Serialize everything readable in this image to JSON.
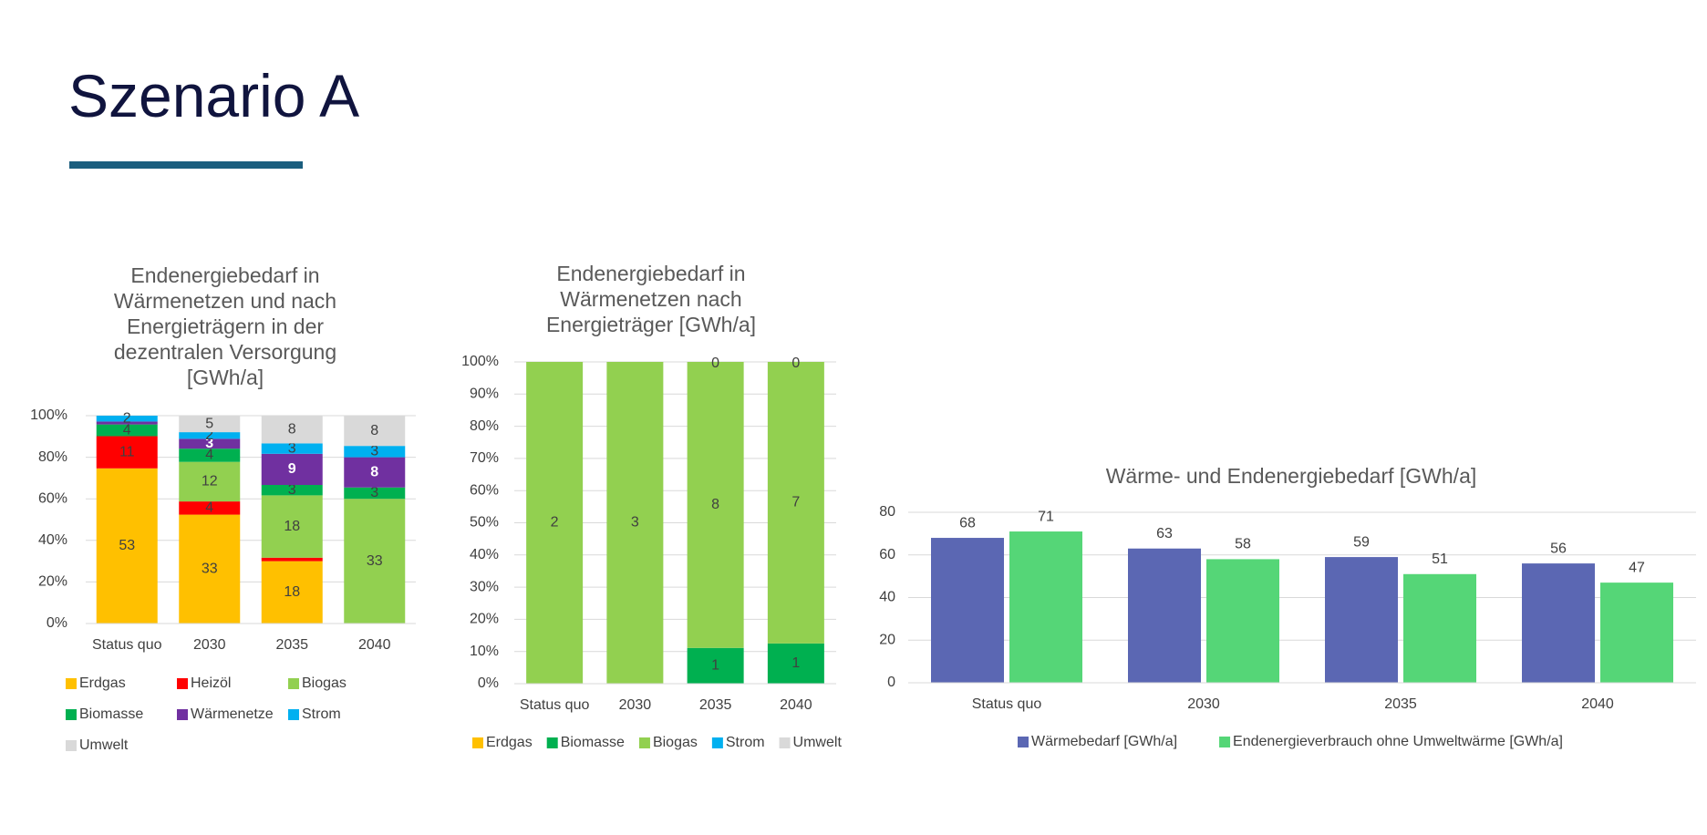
{
  "title": "Szenario A",
  "chart_data": [
    {
      "type": "stacked_bar_100",
      "title": [
        "Endenergiebedarf in",
        "Wärmenetzen und nach",
        "Energieträgern in der",
        "dezentralen Versorgung",
        "[GWh/a]"
      ],
      "categories": [
        "Status quo",
        "2030",
        "2035",
        "2040"
      ],
      "ylim": [
        0,
        100
      ],
      "yticks": [
        {
          "value": 0,
          "label": "0%"
        },
        {
          "value": 20,
          "label": "20%"
        },
        {
          "value": 40,
          "label": "40%"
        },
        {
          "value": 60,
          "label": "60%"
        },
        {
          "value": 80,
          "label": "80%"
        },
        {
          "value": 100,
          "label": "100%"
        }
      ],
      "series": [
        {
          "name": "Erdgas",
          "color": "#ffc000",
          "values": [
            53,
            33,
            18,
            null
          ]
        },
        {
          "name": "Heizöl",
          "color": "#ff0000",
          "values": [
            11,
            4,
            1,
            null
          ]
        },
        {
          "name": "Biogas",
          "color": "#92d050",
          "values": [
            null,
            12,
            18,
            33
          ]
        },
        {
          "name": "Biomasse",
          "color": "#00b050",
          "values": [
            4,
            4,
            3,
            3
          ]
        },
        {
          "name": "Wärmenetze",
          "color": "#7030a0",
          "label_color": "#ffffff",
          "values": [
            1,
            3,
            9,
            8
          ]
        },
        {
          "name": "Strom",
          "color": "#00b0f0",
          "values": [
            2,
            2,
            3,
            3
          ]
        },
        {
          "name": "Umwelt",
          "color": "#d9d9d9",
          "values": [
            null,
            5,
            8,
            8
          ]
        }
      ]
    },
    {
      "type": "stacked_bar_100",
      "title": [
        "Endenergiebedarf in",
        "Wärmenetzen nach",
        "Energieträger [GWh/a]"
      ],
      "categories": [
        "Status quo",
        "2030",
        "2035",
        "2040"
      ],
      "ylim": [
        0,
        100
      ],
      "yticks": [
        {
          "value": 0,
          "label": "0%"
        },
        {
          "value": 10,
          "label": "10%"
        },
        {
          "value": 20,
          "label": "20%"
        },
        {
          "value": 30,
          "label": "30%"
        },
        {
          "value": 40,
          "label": "40%"
        },
        {
          "value": 50,
          "label": "50%"
        },
        {
          "value": 60,
          "label": "60%"
        },
        {
          "value": 70,
          "label": "70%"
        },
        {
          "value": 80,
          "label": "80%"
        },
        {
          "value": 90,
          "label": "90%"
        },
        {
          "value": 100,
          "label": "100%"
        }
      ],
      "series": [
        {
          "name": "Erdgas",
          "color": "#ffc000",
          "values": [
            null,
            null,
            null,
            null
          ]
        },
        {
          "name": "Biomasse",
          "color": "#00b050",
          "values": [
            0,
            0,
            1,
            1
          ]
        },
        {
          "name": "Biogas",
          "color": "#92d050",
          "values": [
            2,
            3,
            8,
            7
          ]
        },
        {
          "name": "Strom",
          "color": "#00b0f0",
          "values": [
            null,
            null,
            0,
            0
          ]
        },
        {
          "name": "Umwelt",
          "color": "#d9d9d9",
          "values": [
            null,
            null,
            null,
            null
          ]
        }
      ]
    },
    {
      "type": "bar",
      "title": [
        "Wärme- und Endenergiebedarf [GWh/a]"
      ],
      "categories": [
        "Status quo",
        "2030",
        "2035",
        "2040"
      ],
      "ylim": [
        0,
        80
      ],
      "yticks": [
        0,
        20,
        40,
        60,
        80
      ],
      "series": [
        {
          "name": "Wärmebedarf [GWh/a]",
          "color": "#5b67b3",
          "values": [
            68,
            63,
            59,
            56
          ]
        },
        {
          "name": "Endenergieverbrauch ohne Umweltwärme [GWh/a]",
          "color": "#55d677",
          "values": [
            71,
            58,
            51,
            47
          ]
        }
      ]
    }
  ]
}
